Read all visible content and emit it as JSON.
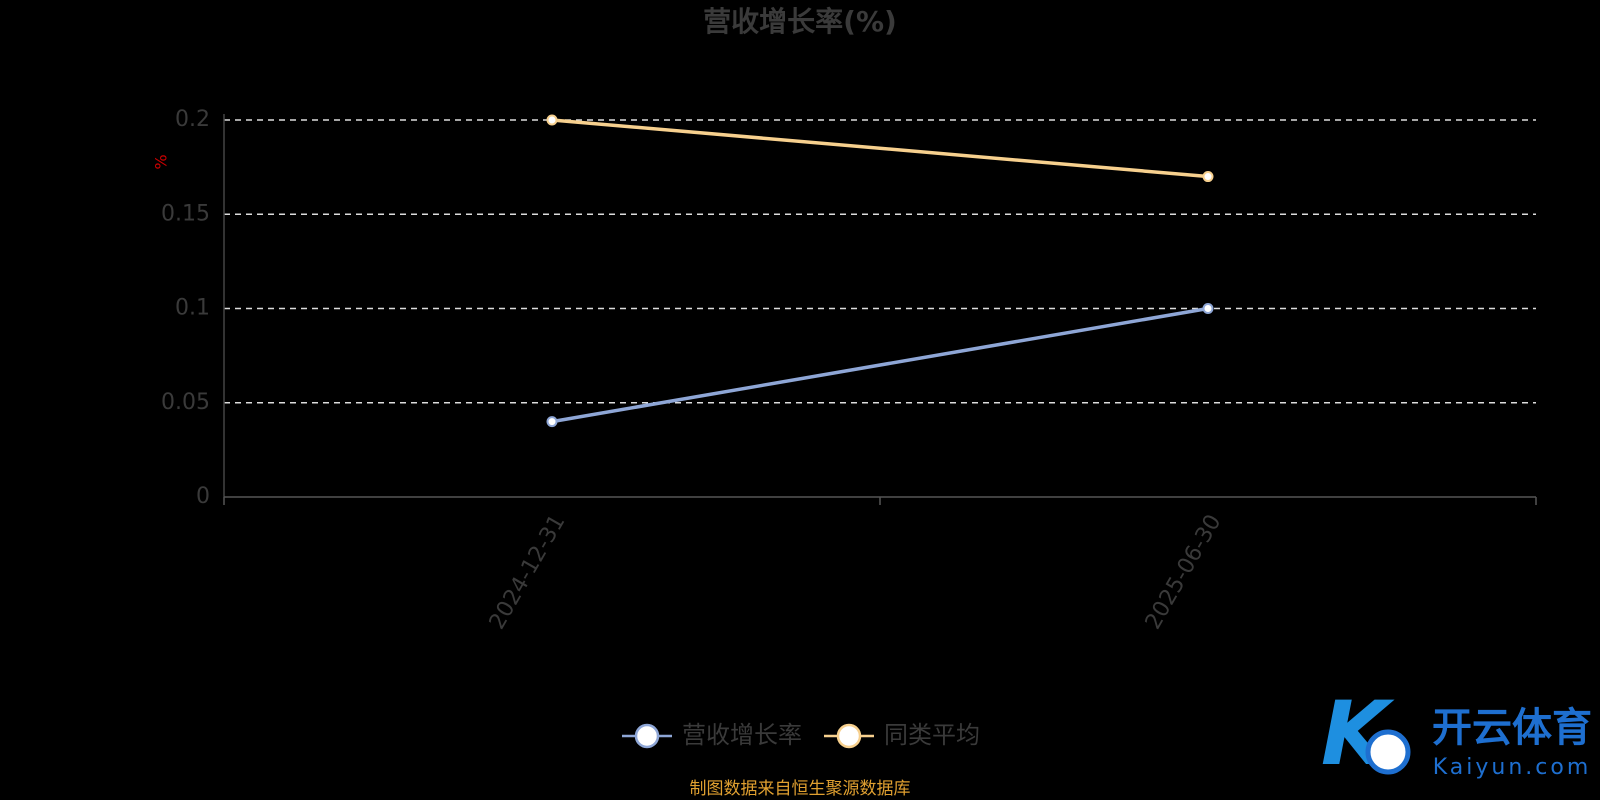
{
  "chart_data": {
    "type": "line",
    "title": "营收增长率(%)",
    "y_label": "%",
    "categories": [
      "2024-12-31",
      "2025-06-30"
    ],
    "series": [
      {
        "name": "营收增长率",
        "color": "#8ea6d6",
        "values": [
          0.04,
          0.1
        ]
      },
      {
        "name": "同类平均",
        "color": "#f7d08e",
        "values": [
          0.2,
          0.17
        ]
      }
    ],
    "ylim": [
      0,
      0.2
    ],
    "yticks": [
      0,
      0.05,
      0.1,
      0.15,
      0.2
    ],
    "grid": true,
    "legend": "bottom",
    "source": "制图数据来自恒生聚源数据库"
  },
  "watermark": {
    "brand": "开云体育",
    "url": "Kaiyun.com"
  }
}
